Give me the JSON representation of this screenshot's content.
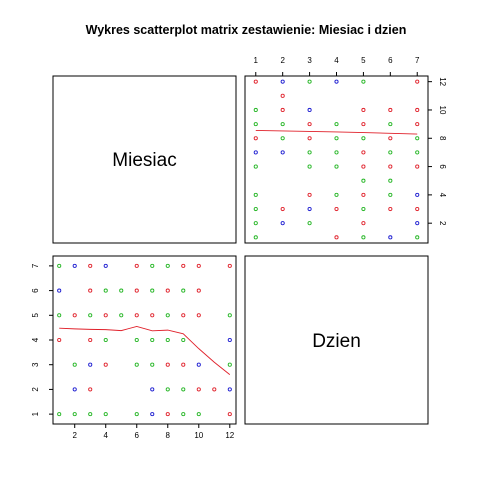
{
  "chart_data": {
    "type": "scatter",
    "title": "Wykres scatterplot matrix zestawienie: Miesiac i dzien",
    "variables": [
      "Miesiac",
      "Dzien"
    ],
    "point_colors": [
      "#e0202a",
      "#22b522",
      "#1a1ad0"
    ],
    "smooth_color": "#e0202a",
    "miesiac_ticks": [
      2,
      4,
      6,
      8,
      10,
      12
    ],
    "dzien_ticks": [
      1,
      2,
      3,
      4,
      5,
      6,
      7
    ],
    "miesiac_range": [
      0.6,
      12.4
    ],
    "dzien_range": [
      0.6,
      7.4
    ],
    "points": [
      [
        1,
        7,
        1
      ],
      [
        1,
        6,
        2
      ],
      [
        1,
        5,
        1
      ],
      [
        1,
        4,
        0
      ],
      [
        1,
        1,
        1
      ],
      [
        2,
        7,
        2
      ],
      [
        2,
        5,
        0
      ],
      [
        2,
        3,
        1
      ],
      [
        2,
        2,
        2
      ],
      [
        2,
        1,
        1
      ],
      [
        3,
        7,
        0
      ],
      [
        3,
        6,
        0
      ],
      [
        3,
        5,
        1
      ],
      [
        3,
        4,
        0
      ],
      [
        3,
        3,
        2
      ],
      [
        3,
        2,
        0
      ],
      [
        3,
        1,
        1
      ],
      [
        4,
        7,
        2
      ],
      [
        4,
        6,
        1
      ],
      [
        4,
        5,
        0
      ],
      [
        4,
        4,
        1
      ],
      [
        4,
        3,
        0
      ],
      [
        4,
        1,
        1
      ],
      [
        5,
        6,
        1
      ],
      [
        5,
        5,
        1
      ],
      [
        6,
        7,
        0
      ],
      [
        6,
        6,
        0
      ],
      [
        6,
        5,
        0
      ],
      [
        6,
        4,
        1
      ],
      [
        6,
        3,
        1
      ],
      [
        6,
        1,
        1
      ],
      [
        7,
        7,
        1
      ],
      [
        7,
        6,
        1
      ],
      [
        7,
        5,
        0
      ],
      [
        7,
        4,
        1
      ],
      [
        7,
        3,
        1
      ],
      [
        7,
        2,
        2
      ],
      [
        7,
        1,
        2
      ],
      [
        8,
        7,
        1
      ],
      [
        8,
        6,
        0
      ],
      [
        8,
        5,
        1
      ],
      [
        8,
        4,
        1
      ],
      [
        8,
        3,
        0
      ],
      [
        8,
        2,
        1
      ],
      [
        8,
        1,
        0
      ],
      [
        9,
        7,
        0
      ],
      [
        9,
        6,
        1
      ],
      [
        9,
        5,
        0
      ],
      [
        9,
        4,
        1
      ],
      [
        9,
        3,
        0
      ],
      [
        9,
        2,
        1
      ],
      [
        9,
        1,
        1
      ],
      [
        10,
        7,
        0
      ],
      [
        10,
        6,
        0
      ],
      [
        10,
        5,
        0
      ],
      [
        10,
        3,
        2
      ],
      [
        10,
        2,
        0
      ],
      [
        10,
        1,
        1
      ],
      [
        11,
        2,
        0
      ],
      [
        12,
        7,
        0
      ],
      [
        12,
        5,
        1
      ],
      [
        12,
        4,
        2
      ],
      [
        12,
        3,
        1
      ],
      [
        12,
        2,
        2
      ],
      [
        12,
        1,
        0
      ]
    ],
    "smooth_dzien_by_miesiac": [
      [
        1,
        4.48
      ],
      [
        2,
        4.45
      ],
      [
        3,
        4.43
      ],
      [
        4,
        4.42
      ],
      [
        5,
        4.38
      ],
      [
        6,
        4.55
      ],
      [
        7,
        4.37
      ],
      [
        8,
        4.4
      ],
      [
        9,
        4.25
      ],
      [
        10,
        3.65
      ],
      [
        11,
        3.1
      ],
      [
        12,
        2.6
      ]
    ],
    "smooth_miesiac_by_dzien": [
      [
        1,
        8.55
      ],
      [
        2,
        8.52
      ],
      [
        3,
        8.48
      ],
      [
        4,
        8.45
      ],
      [
        5,
        8.4
      ],
      [
        6,
        8.35
      ],
      [
        7,
        8.3
      ]
    ]
  }
}
